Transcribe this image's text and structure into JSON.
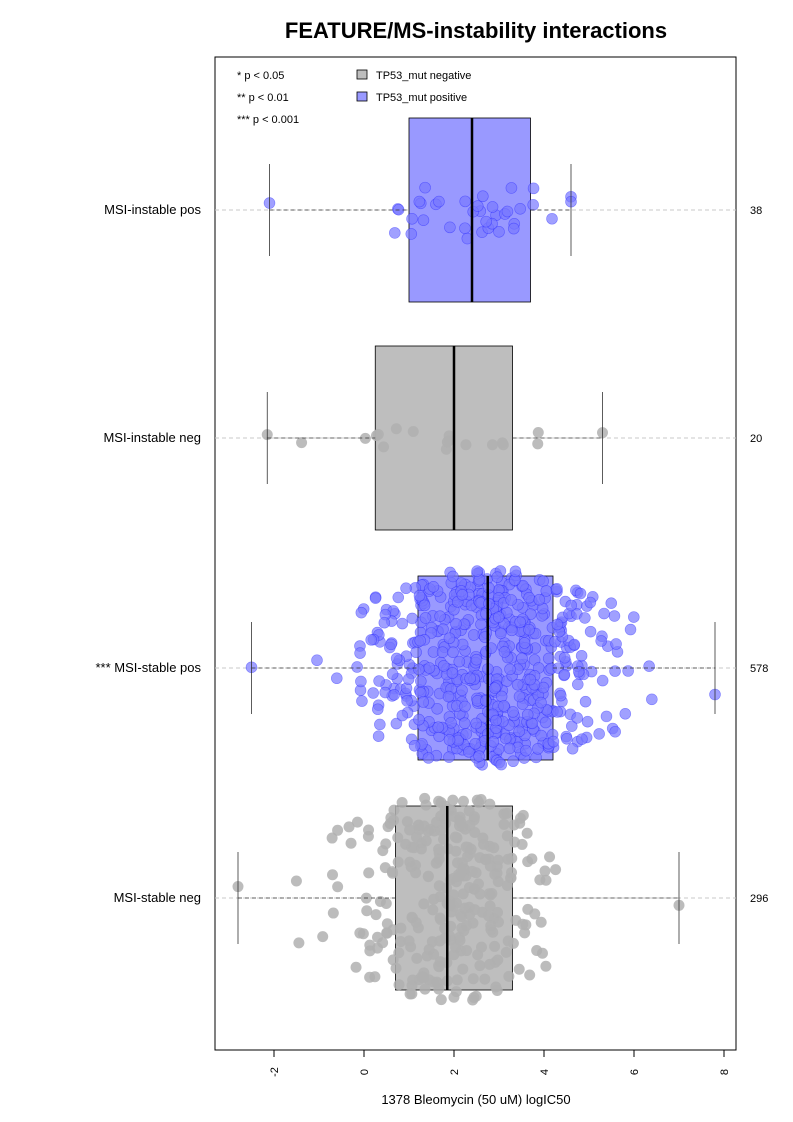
{
  "chart_data": {
    "type": "box-beeswarm",
    "title": "FEATURE/MS-instability interactions",
    "xlabel": "1378 Bleomycin (50 uM) logIC50",
    "xlim": [
      -3.2,
      8.2
    ],
    "xticks": [
      -2,
      0,
      2,
      4,
      6,
      8
    ],
    "xtick_labels": [
      "-2",
      "0",
      "2",
      "4",
      "6",
      "8"
    ],
    "grid": "dashed horizontal guide per group",
    "significance_legend": [
      "* p < 0.05",
      "** p < 0.01",
      "*** p < 0.001"
    ],
    "legend": [
      {
        "label": "TP53_mut negative",
        "color": "#bebebe"
      },
      {
        "label": "TP53_mut positive",
        "color": "#9999ff"
      }
    ],
    "colors": {
      "negative_fill": "#bebebe",
      "positive_fill": "#9999ff",
      "negative_point": "#b0b0b0",
      "positive_point": "#7777ff",
      "positive_point_edge": "#0000ff"
    },
    "groups": [
      {
        "label": "MSI-instable pos",
        "count": "38",
        "tp53": "positive",
        "whisker_low": -2.1,
        "q1": 1.0,
        "median": 2.4,
        "q3": 3.7,
        "whisker_high": 4.6
      },
      {
        "label": "MSI-instable neg",
        "count": "20",
        "tp53": "negative",
        "whisker_low": -2.15,
        "q1": 0.25,
        "median": 2.0,
        "q3": 3.3,
        "whisker_high": 5.3
      },
      {
        "label": "*** MSI-stable pos",
        "count": "578",
        "tp53": "positive",
        "whisker_low": -2.5,
        "q1": 1.2,
        "median": 2.75,
        "q3": 4.2,
        "whisker_high": 7.8
      },
      {
        "label": "MSI-stable neg",
        "count": "296",
        "tp53": "negative",
        "whisker_low": -2.8,
        "q1": 0.7,
        "median": 1.85,
        "q3": 3.3,
        "whisker_high": 7.0
      }
    ]
  }
}
